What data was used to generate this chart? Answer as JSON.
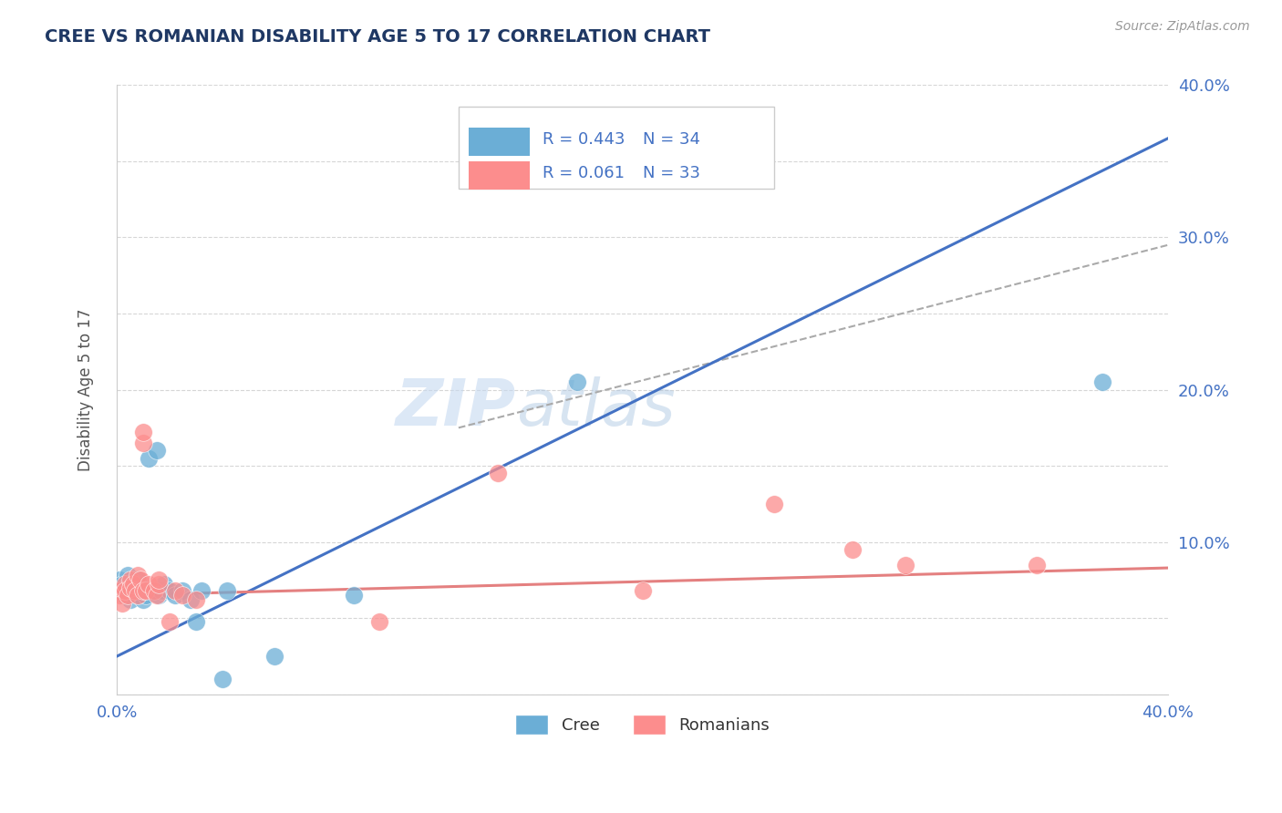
{
  "title": "CREE VS ROMANIAN DISABILITY AGE 5 TO 17 CORRELATION CHART",
  "source_text": "Source: ZipAtlas.com",
  "ylabel": "Disability Age 5 to 17",
  "xlim": [
    0.0,
    0.4
  ],
  "ylim": [
    0.0,
    0.4
  ],
  "x_ticks": [
    0.0,
    0.05,
    0.1,
    0.15,
    0.2,
    0.25,
    0.3,
    0.35,
    0.4
  ],
  "y_ticks": [
    0.0,
    0.05,
    0.1,
    0.15,
    0.2,
    0.25,
    0.3,
    0.35,
    0.4
  ],
  "x_tick_labels": [
    "0.0%",
    "",
    "",
    "",
    "",
    "",
    "",
    "",
    "40.0%"
  ],
  "y_tick_labels_right": [
    "",
    "",
    "10.0%",
    "",
    "20.0%",
    "",
    "30.0%",
    "",
    "40.0%"
  ],
  "cree_color": "#6baed6",
  "romanian_color": "#fc8d8d",
  "cree_line_color": "#4472c4",
  "romanian_line_color": "#e48080",
  "cree_R": 0.443,
  "cree_N": 34,
  "romanian_R": 0.061,
  "romanian_N": 33,
  "watermark_zip": "ZIP",
  "watermark_atlas": "atlas",
  "background_color": "#ffffff",
  "grid_color": "#cccccc",
  "cree_points": [
    [
      0.001,
      0.075
    ],
    [
      0.001,
      0.068
    ],
    [
      0.002,
      0.072
    ],
    [
      0.003,
      0.065
    ],
    [
      0.004,
      0.078
    ],
    [
      0.004,
      0.07
    ],
    [
      0.005,
      0.065
    ],
    [
      0.005,
      0.062
    ],
    [
      0.006,
      0.068
    ],
    [
      0.007,
      0.072
    ],
    [
      0.008,
      0.075
    ],
    [
      0.008,
      0.065
    ],
    [
      0.009,
      0.07
    ],
    [
      0.01,
      0.068
    ],
    [
      0.01,
      0.062
    ],
    [
      0.011,
      0.065
    ],
    [
      0.012,
      0.155
    ],
    [
      0.014,
      0.068
    ],
    [
      0.015,
      0.16
    ],
    [
      0.016,
      0.065
    ],
    [
      0.017,
      0.068
    ],
    [
      0.018,
      0.072
    ],
    [
      0.02,
      0.068
    ],
    [
      0.022,
      0.065
    ],
    [
      0.025,
      0.068
    ],
    [
      0.028,
      0.062
    ],
    [
      0.03,
      0.048
    ],
    [
      0.032,
      0.068
    ],
    [
      0.04,
      0.01
    ],
    [
      0.042,
      0.068
    ],
    [
      0.06,
      0.025
    ],
    [
      0.09,
      0.065
    ],
    [
      0.175,
      0.205
    ],
    [
      0.375,
      0.205
    ]
  ],
  "romanian_points": [
    [
      0.001,
      0.068
    ],
    [
      0.001,
      0.065
    ],
    [
      0.002,
      0.06
    ],
    [
      0.003,
      0.072
    ],
    [
      0.003,
      0.068
    ],
    [
      0.004,
      0.065
    ],
    [
      0.005,
      0.075
    ],
    [
      0.005,
      0.07
    ],
    [
      0.006,
      0.072
    ],
    [
      0.007,
      0.068
    ],
    [
      0.008,
      0.065
    ],
    [
      0.008,
      0.078
    ],
    [
      0.009,
      0.075
    ],
    [
      0.01,
      0.068
    ],
    [
      0.01,
      0.165
    ],
    [
      0.01,
      0.172
    ],
    [
      0.011,
      0.068
    ],
    [
      0.012,
      0.072
    ],
    [
      0.014,
      0.068
    ],
    [
      0.015,
      0.065
    ],
    [
      0.016,
      0.072
    ],
    [
      0.016,
      0.075
    ],
    [
      0.02,
      0.048
    ],
    [
      0.022,
      0.068
    ],
    [
      0.025,
      0.065
    ],
    [
      0.03,
      0.062
    ],
    [
      0.1,
      0.048
    ],
    [
      0.145,
      0.145
    ],
    [
      0.2,
      0.068
    ],
    [
      0.25,
      0.125
    ],
    [
      0.28,
      0.095
    ],
    [
      0.3,
      0.085
    ],
    [
      0.35,
      0.085
    ]
  ],
  "title_color": "#1f3864",
  "axis_label_color": "#555555",
  "tick_label_color": "#4472c4",
  "legend_R_color": "#4472c4",
  "legend_N_color": "#333333",
  "dashed_line": [
    [
      0.13,
      0.175
    ],
    [
      0.4,
      0.295
    ]
  ]
}
